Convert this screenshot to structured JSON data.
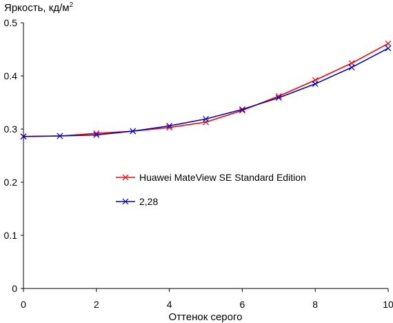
{
  "chart_data": {
    "type": "line",
    "title": "",
    "ylabel": "Яркость, кд/м",
    "ylabel_superscript": "2",
    "xlabel": "Оттенок серого",
    "xlim": [
      0,
      10
    ],
    "ylim": [
      0,
      0.5
    ],
    "x_ticks": [
      0,
      2,
      4,
      6,
      8,
      10
    ],
    "x_tick_labels": [
      "0",
      "2",
      "4",
      "6",
      "8",
      "10"
    ],
    "y_ticks": [
      0,
      0.1,
      0.2,
      0.3,
      0.4,
      0.5
    ],
    "y_tick_labels": [
      "0",
      "0.1",
      "0.2",
      "0.3",
      "0.4",
      "0.5"
    ],
    "grid": false,
    "legend_position": "center",
    "x": [
      0,
      1,
      2,
      3,
      4,
      5,
      6,
      7,
      8,
      9,
      10
    ],
    "series": [
      {
        "name": "Huawei MateView SE Standard Edition",
        "color": "#ff0000",
        "marker": "x",
        "values": [
          0.286,
          0.287,
          0.292,
          0.296,
          0.303,
          0.313,
          0.335,
          0.362,
          0.392,
          0.424,
          0.461
        ]
      },
      {
        "name": "2,28",
        "color": "#0000cc",
        "marker": "x",
        "values": [
          0.286,
          0.287,
          0.289,
          0.296,
          0.306,
          0.319,
          0.337,
          0.359,
          0.385,
          0.416,
          0.452
        ]
      }
    ]
  }
}
